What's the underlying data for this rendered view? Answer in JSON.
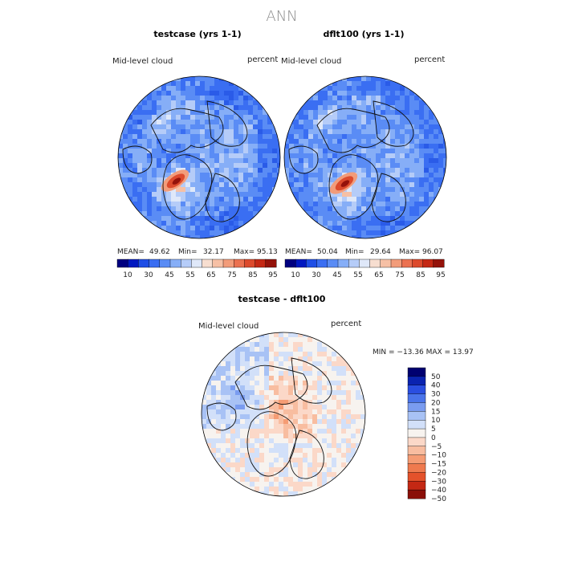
{
  "figure_title": "ANN",
  "chart_data": [
    {
      "type": "heatmap",
      "title": "testcase (yrs 1-1)",
      "variable_label": "Mid-level cloud",
      "units_label": "percent",
      "projection": "north-polar-stereographic",
      "stats": {
        "mean_label": "MEAN=",
        "mean": "49.62",
        "min_label": "Min=",
        "min": "32.17",
        "max_label": "Max=",
        "max": "95.13"
      },
      "colorbar": {
        "orientation": "horizontal",
        "colors": [
          "#000080",
          "#0018c0",
          "#1e4ee6",
          "#3a6ef2",
          "#5a8cf5",
          "#86aef7",
          "#b5ccf8",
          "#dfe8f9",
          "#f7ded0",
          "#f6c0a5",
          "#f29c7a",
          "#eb7150",
          "#dc4a2c",
          "#c42814",
          "#94120a"
        ],
        "tick_labels": [
          "10",
          "30",
          "45",
          "55",
          "65",
          "75",
          "85",
          "95"
        ]
      }
    },
    {
      "type": "heatmap",
      "title": "dflt100 (yrs 1-1)",
      "variable_label": "Mid-level cloud",
      "units_label": "percent",
      "projection": "north-polar-stereographic",
      "stats": {
        "mean_label": "MEAN=",
        "mean": "50.04",
        "min_label": "Min=",
        "min": "29.64",
        "max_label": "Max=",
        "max": "96.07"
      },
      "colorbar": {
        "orientation": "horizontal",
        "colors": [
          "#000080",
          "#0018c0",
          "#1e4ee6",
          "#3a6ef2",
          "#5a8cf5",
          "#86aef7",
          "#b5ccf8",
          "#dfe8f9",
          "#f7ded0",
          "#f6c0a5",
          "#f29c7a",
          "#eb7150",
          "#dc4a2c",
          "#c42814",
          "#94120a"
        ],
        "tick_labels": [
          "10",
          "30",
          "45",
          "55",
          "65",
          "75",
          "85",
          "95"
        ]
      }
    },
    {
      "type": "heatmap",
      "title": "testcase - dflt100",
      "variable_label": "Mid-level cloud",
      "units_label": "percent",
      "projection": "north-polar-stereographic",
      "stats_text": "MIN = −13.36 MAX =  13.97",
      "colorbar": {
        "orientation": "vertical",
        "colors": [
          "#000070",
          "#0a23b0",
          "#2a4ee0",
          "#4a74ea",
          "#7a9cf0",
          "#a8c2f5",
          "#d2e0f9",
          "#f7f3ef",
          "#fbd8c8",
          "#f8bda0",
          "#f59c74",
          "#ef7a4e",
          "#e4522b",
          "#c42814",
          "#8a0f08"
        ],
        "tick_labels": [
          "50",
          "40",
          "30",
          "20",
          "15",
          "10",
          "5",
          "0",
          "−5",
          "−10",
          "−15",
          "−20",
          "−30",
          "−40",
          "−50"
        ]
      }
    }
  ]
}
